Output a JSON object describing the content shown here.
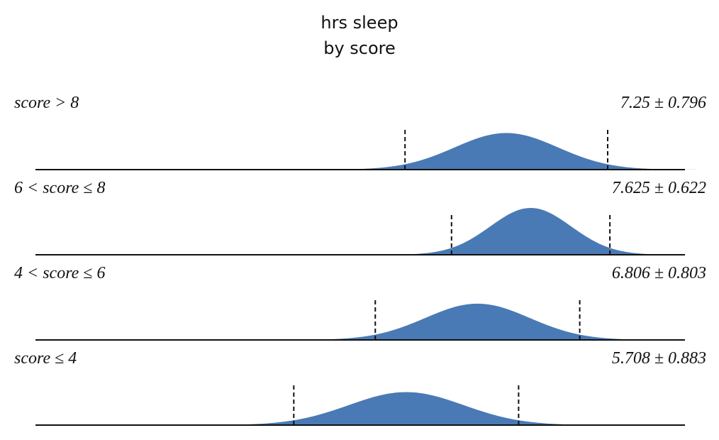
{
  "chart_data": {
    "type": "area",
    "title_lines": [
      "hrs sleep",
      "by score"
    ],
    "xlim": [
      0,
      10
    ],
    "color": "#4a7ab5",
    "fill_color": "#4a7ab5",
    "rows": [
      {
        "label": "score > 8",
        "mean": 7.25,
        "sd": 0.796,
        "stat_text": "7.25 ± 0.796"
      },
      {
        "label": "6 < score ≤ 8",
        "mean": 7.625,
        "sd": 0.622,
        "stat_text": "7.625 ± 0.622"
      },
      {
        "label": "4 < score ≤ 6",
        "mean": 6.806,
        "sd": 0.803,
        "stat_text": "6.806 ± 0.803"
      },
      {
        "label": "score ≤ 4",
        "mean": 5.708,
        "sd": 0.883,
        "stat_text": "5.708 ± 0.883"
      }
    ]
  }
}
